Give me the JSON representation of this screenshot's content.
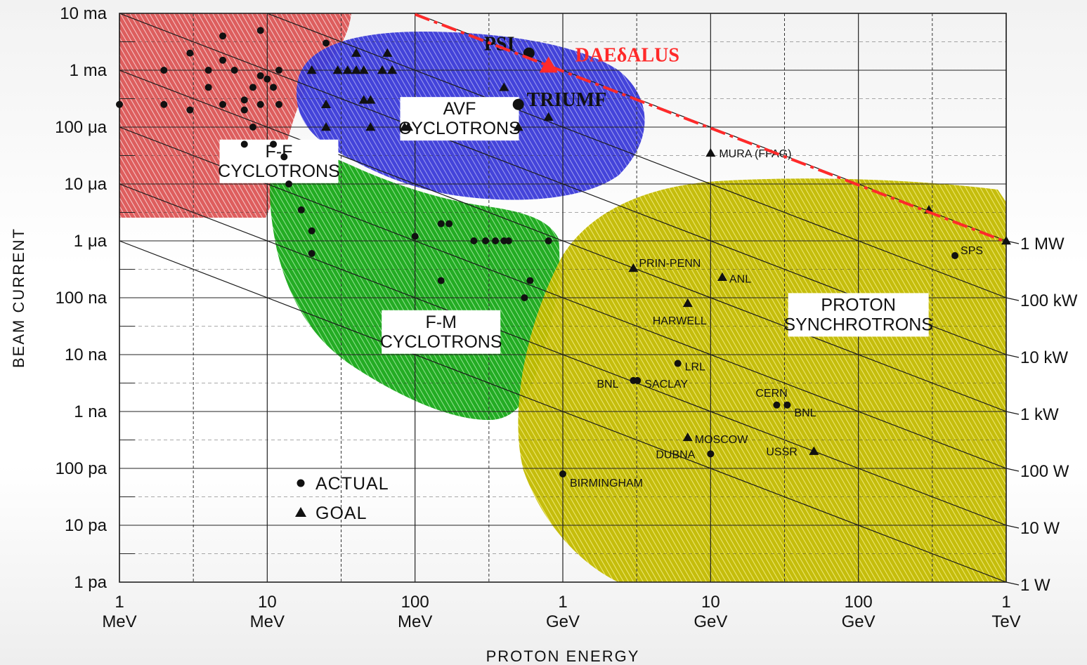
{
  "chart_data": {
    "type": "scatter",
    "xlabel": "PROTON ENERGY",
    "ylabel": "BEAM CURRENT",
    "xscale": "log",
    "yscale": "log",
    "xlim_MeV": [
      1,
      1000000
    ],
    "ylim_A": [
      1e-12,
      0.01
    ],
    "x_ticks": [
      {
        "value": 1,
        "line1": "1",
        "line2": "MeV"
      },
      {
        "value": 10,
        "line1": "10",
        "line2": "MeV"
      },
      {
        "value": 100,
        "line1": "100",
        "line2": "MeV"
      },
      {
        "value": 1000,
        "line1": "1",
        "line2": "GeV"
      },
      {
        "value": 10000,
        "line1": "10",
        "line2": "GeV"
      },
      {
        "value": 100000,
        "line1": "100",
        "line2": "GeV"
      },
      {
        "value": 1000000,
        "line1": "1",
        "line2": "TeV"
      }
    ],
    "y_ticks": [
      {
        "value": 0.01,
        "label": "10 ma"
      },
      {
        "value": 0.001,
        "label": "1 ma"
      },
      {
        "value": 0.0001,
        "label": "100 μa"
      },
      {
        "value": 1e-05,
        "label": "10 μa"
      },
      {
        "value": 1e-06,
        "label": "1 μa"
      },
      {
        "value": 1e-07,
        "label": "100 na"
      },
      {
        "value": 1e-08,
        "label": "10 na"
      },
      {
        "value": 1e-09,
        "label": "1 na"
      },
      {
        "value": 1e-10,
        "label": "100 pa"
      },
      {
        "value": 1e-11,
        "label": "10 pa"
      },
      {
        "value": 1e-12,
        "label": "1 pa"
      }
    ],
    "power_lines": [
      {
        "watts": 1000000.0,
        "label": "1 MW"
      },
      {
        "watts": 100000.0,
        "label": "100 kW"
      },
      {
        "watts": 10000.0,
        "label": "10 kW"
      },
      {
        "watts": 1000.0,
        "label": "1 kW"
      },
      {
        "watts": 100.0,
        "label": "100 W"
      },
      {
        "watts": 10.0,
        "label": "10 W"
      },
      {
        "watts": 1,
        "label": "1 W"
      }
    ],
    "regions": [
      {
        "name_lines": [
          "F-F",
          "CYCLOTRONS"
        ],
        "color": "#d94a4a",
        "label_E": 12,
        "label_I": 2.5e-05
      },
      {
        "name_lines": [
          "AVF",
          "CYCLOTRONS"
        ],
        "color": "#3b3bd4",
        "label_E": 200,
        "label_I": 0.00014
      },
      {
        "name_lines": [
          "F-M",
          "CYCLOTRONS"
        ],
        "color": "#1faa1f",
        "label_E": 150,
        "label_I": 2.5e-08
      },
      {
        "name_lines": [
          "PROTON",
          "SYNCHROTRONS"
        ],
        "color": "#c8c000",
        "label_E": 100000,
        "label_I": 5e-08
      }
    ],
    "labeled_points": [
      {
        "label": "PSI",
        "E_MeV": 590,
        "I_A": 0.002,
        "marker": "circle"
      },
      {
        "label": "TRIUMF",
        "E_MeV": 500,
        "I_A": 0.00025,
        "marker": "circle"
      },
      {
        "label": "MURA (FFAG)",
        "E_MeV": 10000,
        "I_A": 3.5e-05,
        "marker": "triangle"
      },
      {
        "label": "SPS",
        "E_MeV": 450000,
        "I_A": 5.5e-07,
        "marker": "circle"
      },
      {
        "label": "PRIN-PENN",
        "E_MeV": 3000,
        "I_A": 3.3e-07,
        "marker": "triangle"
      },
      {
        "label": "ANL",
        "E_MeV": 12000,
        "I_A": 2.3e-07,
        "marker": "triangle"
      },
      {
        "label": "HARWELL",
        "E_MeV": 7000,
        "I_A": 8e-08,
        "marker": "triangle"
      },
      {
        "label": "LRL",
        "E_MeV": 6000,
        "I_A": 7e-09,
        "marker": "circle"
      },
      {
        "label": "BNL",
        "E_MeV": 3000,
        "I_A": 3.5e-09,
        "marker": "circle"
      },
      {
        "label": "SACLAY",
        "E_MeV": 3200,
        "I_A": 3.5e-09,
        "marker": "circle"
      },
      {
        "label": "CERN",
        "E_MeV": 28000,
        "I_A": 1.3e-09,
        "marker": "circle"
      },
      {
        "label": "BNL",
        "E_MeV": 33000,
        "I_A": 1.3e-09,
        "marker": "circle"
      },
      {
        "label": "MOSCOW",
        "E_MeV": 7000,
        "I_A": 3.5e-10,
        "marker": "triangle"
      },
      {
        "label": "DUBNA",
        "E_MeV": 10000,
        "I_A": 1.8e-10,
        "marker": "circle"
      },
      {
        "label": "USSR",
        "E_MeV": 50000,
        "I_A": 2e-10,
        "marker": "triangle"
      },
      {
        "label": "BIRMINGHAM",
        "E_MeV": 1000,
        "I_A": 8e-11,
        "marker": "circle"
      }
    ],
    "unlabeled_points": {
      "circles": [
        [
          1,
          0.00025
        ],
        [
          2,
          0.001
        ],
        [
          2,
          0.00025
        ],
        [
          3,
          0.002
        ],
        [
          3,
          0.0002
        ],
        [
          4,
          0.0005
        ],
        [
          4,
          0.001
        ],
        [
          5,
          0.004
        ],
        [
          5,
          0.0015
        ],
        [
          5,
          0.00025
        ],
        [
          6,
          0.001
        ],
        [
          7,
          0.0003
        ],
        [
          7,
          0.0002
        ],
        [
          7,
          5e-05
        ],
        [
          8,
          0.0005
        ],
        [
          8,
          0.0001
        ],
        [
          9,
          0.0008
        ],
        [
          9,
          0.005
        ],
        [
          9,
          0.00025
        ],
        [
          10,
          0.0007
        ],
        [
          11,
          0.0005
        ],
        [
          12,
          0.00025
        ],
        [
          12,
          0.001
        ],
        [
          11,
          5e-05
        ],
        [
          13,
          3e-05
        ],
        [
          14,
          1e-05
        ],
        [
          17,
          3.5e-06
        ],
        [
          20,
          1.5e-06
        ],
        [
          20,
          6e-07
        ],
        [
          25,
          0.003
        ],
        [
          100,
          1.2e-06
        ],
        [
          150,
          2e-06
        ],
        [
          170,
          2e-06
        ],
        [
          150,
          2e-07
        ],
        [
          250,
          1e-06
        ],
        [
          300,
          1e-06
        ],
        [
          350,
          1e-06
        ],
        [
          400,
          1e-06
        ],
        [
          430,
          1e-06
        ],
        [
          550,
          1e-07
        ],
        [
          600,
          2e-07
        ],
        [
          800,
          1e-06
        ]
      ],
      "triangles": [
        [
          20,
          0.001
        ],
        [
          25,
          0.00025
        ],
        [
          25,
          0.0001
        ],
        [
          30,
          0.001
        ],
        [
          35,
          0.001
        ],
        [
          40,
          0.002
        ],
        [
          40,
          0.001
        ],
        [
          45,
          0.001
        ],
        [
          45,
          0.0003
        ],
        [
          50,
          0.0003
        ],
        [
          50,
          0.0001
        ],
        [
          60,
          0.001
        ],
        [
          65,
          0.002
        ],
        [
          70,
          0.001
        ],
        [
          85,
          0.0001
        ],
        [
          90,
          0.0001
        ],
        [
          400,
          0.0005
        ],
        [
          500,
          0.0001
        ],
        [
          800,
          0.00015
        ],
        [
          300000,
          3.5e-06
        ],
        [
          1000000,
          1e-06
        ]
      ]
    },
    "daedalus": {
      "label": "DAEδALUS",
      "E_MeV": 800,
      "I_A": 0.0012,
      "marker": "triangle",
      "color": "#ff2a2a",
      "line_from_E": 100,
      "line_to_E": 1000000
    },
    "legend": [
      {
        "marker": "circle",
        "label": "ACTUAL"
      },
      {
        "marker": "triangle",
        "label": "GOAL"
      }
    ]
  }
}
